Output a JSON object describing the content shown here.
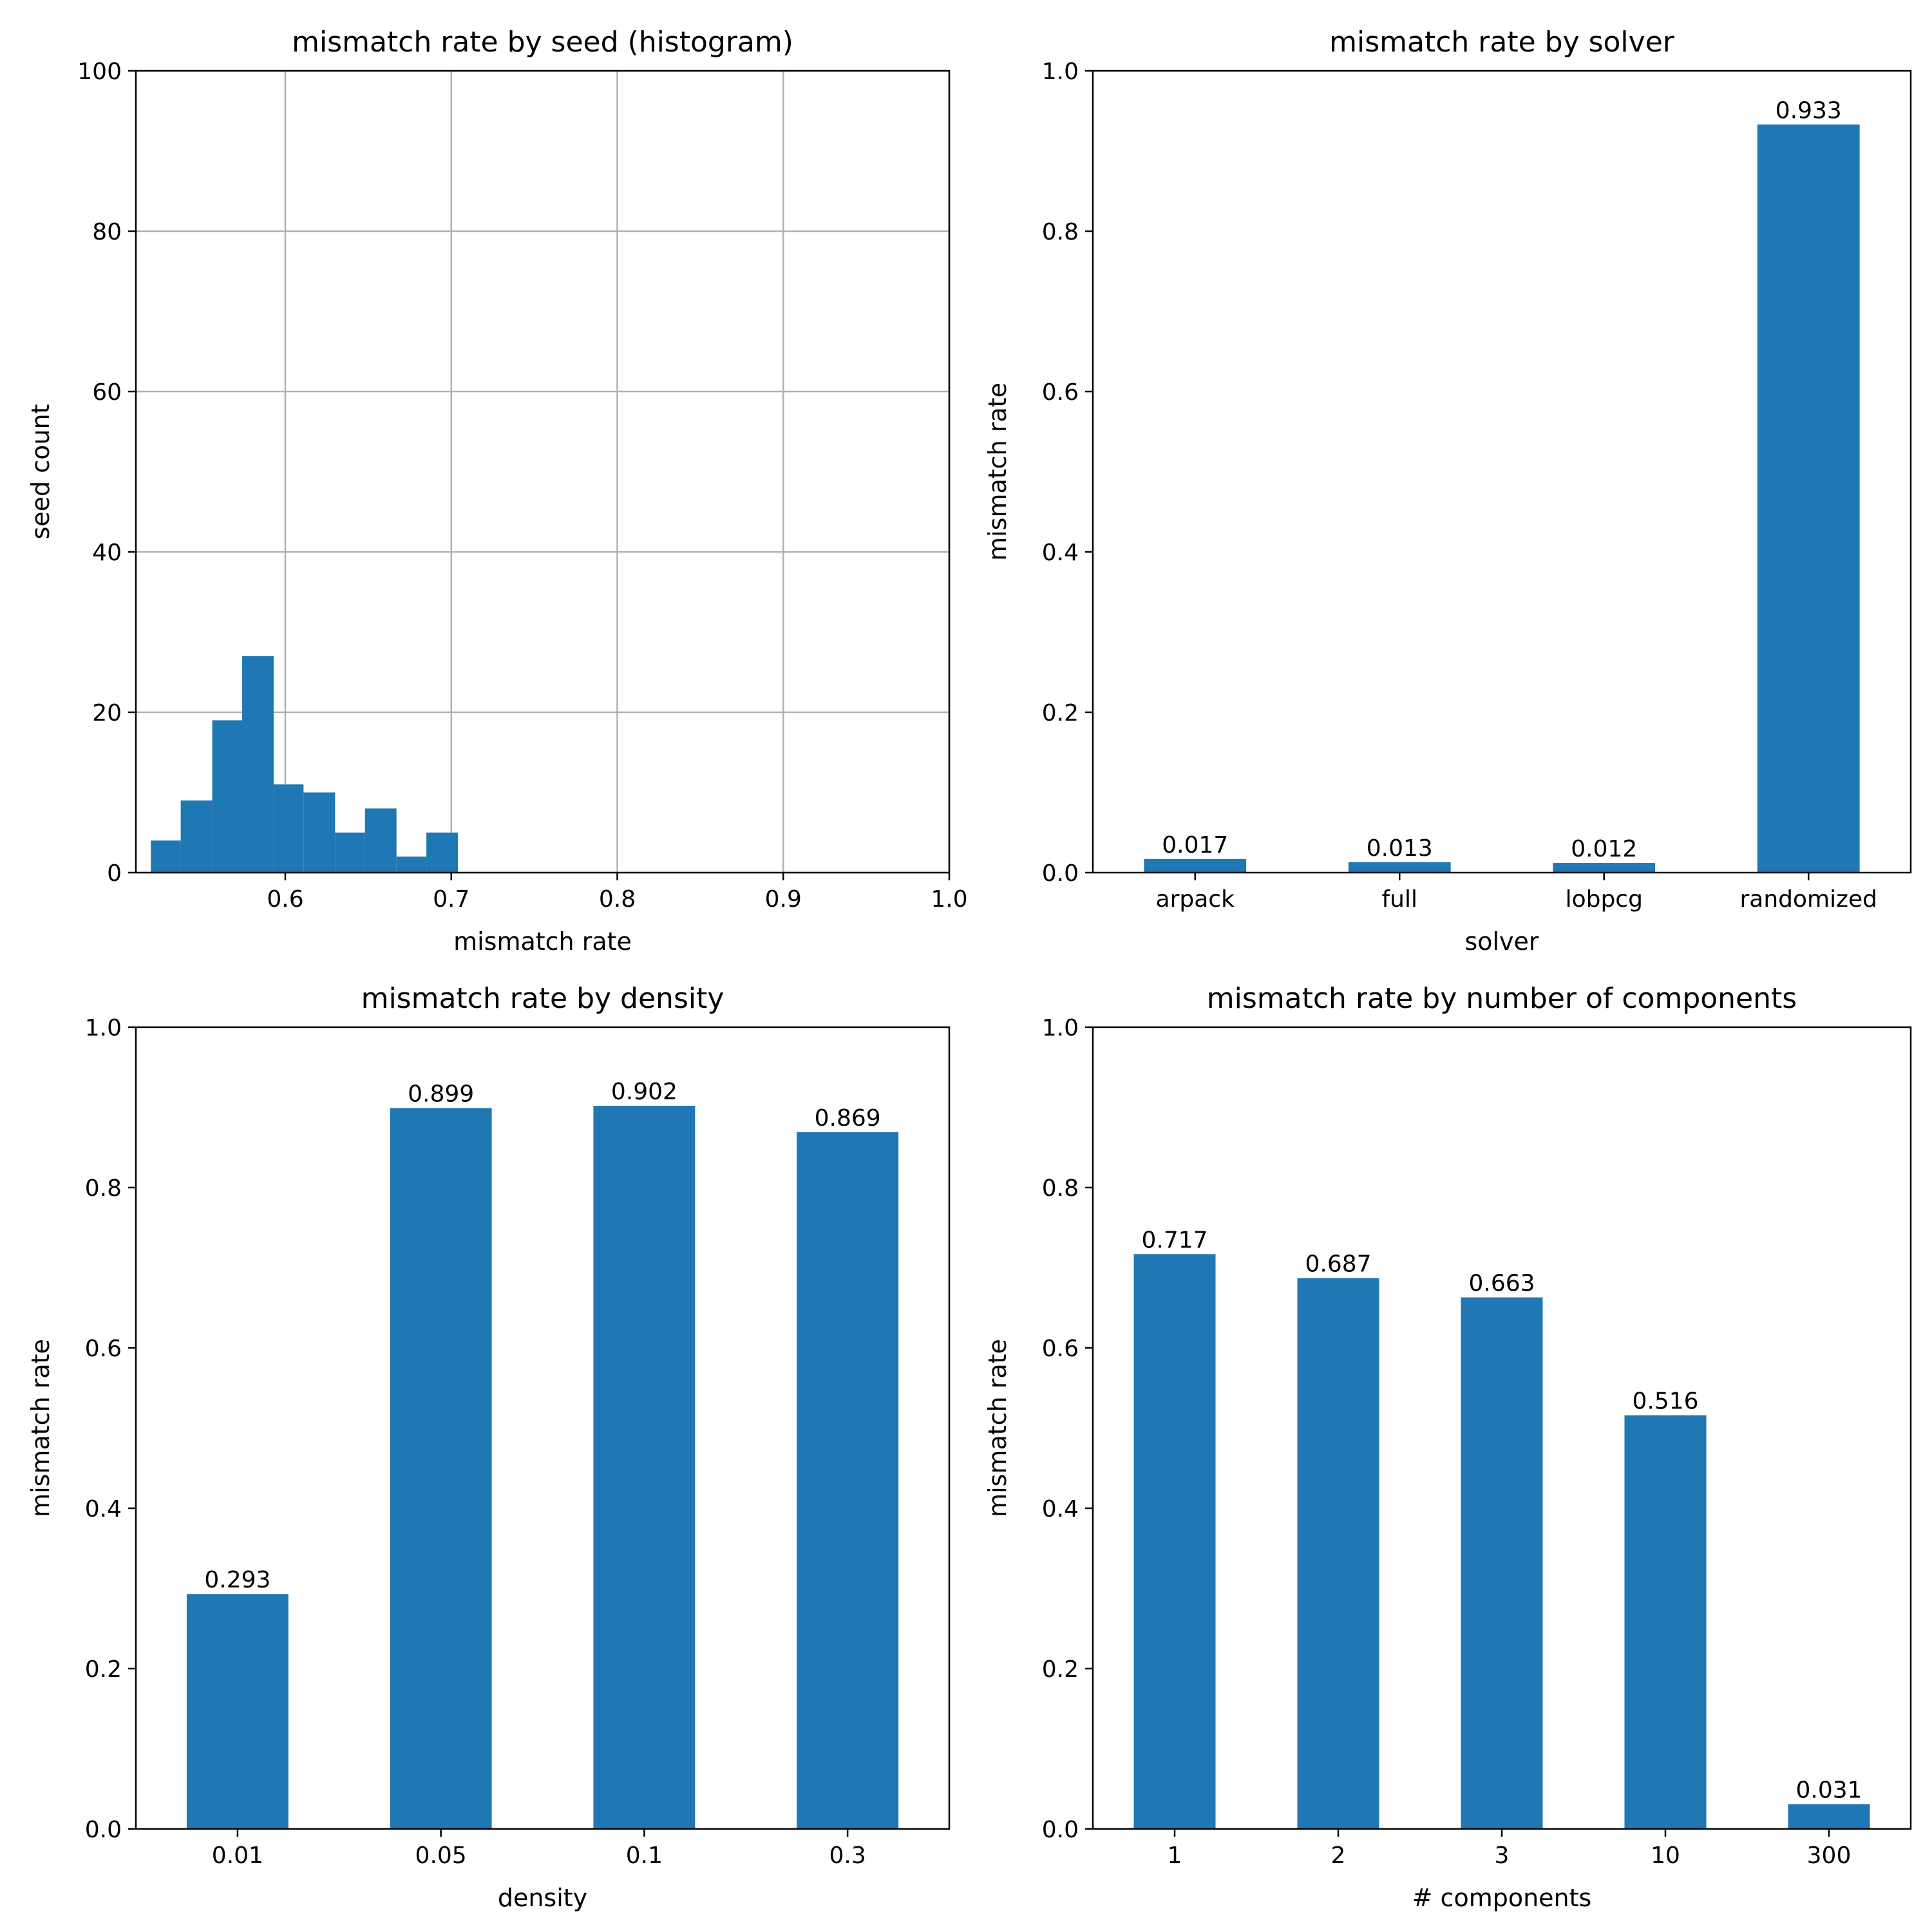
{
  "colors": {
    "bar": "#1f77b4",
    "grid": "#b0b0b0",
    "axis": "#000000",
    "background": "#ffffff"
  },
  "chart_data": [
    {
      "type": "bar",
      "subtype": "histogram",
      "title": "mismatch rate by seed (histogram)",
      "xlabel": "mismatch rate",
      "ylabel": "seed count",
      "xlim": [
        0.51,
        1.0
      ],
      "ylim": [
        0,
        100
      ],
      "grid": true,
      "xticks": [
        0.6,
        0.7,
        0.8,
        0.9,
        1.0
      ],
      "xtick_labels": [
        "0.6",
        "0.7",
        "0.8",
        "0.9",
        "1.0"
      ],
      "yticks": [
        0,
        20,
        40,
        60,
        80,
        100
      ],
      "ytick_labels": [
        "0",
        "20",
        "40",
        "60",
        "80",
        "100"
      ],
      "bins": [
        {
          "x0": 0.519,
          "x1": 0.537,
          "count": 4
        },
        {
          "x0": 0.537,
          "x1": 0.556,
          "count": 9
        },
        {
          "x0": 0.556,
          "x1": 0.574,
          "count": 19
        },
        {
          "x0": 0.574,
          "x1": 0.593,
          "count": 27
        },
        {
          "x0": 0.593,
          "x1": 0.611,
          "count": 11
        },
        {
          "x0": 0.611,
          "x1": 0.63,
          "count": 10
        },
        {
          "x0": 0.63,
          "x1": 0.648,
          "count": 5
        },
        {
          "x0": 0.648,
          "x1": 0.667,
          "count": 8
        },
        {
          "x0": 0.667,
          "x1": 0.685,
          "count": 2
        },
        {
          "x0": 0.685,
          "x1": 0.704,
          "count": 5
        }
      ]
    },
    {
      "type": "bar",
      "title": "mismatch rate by solver",
      "xlabel": "solver",
      "ylabel": "mismatch rate",
      "ylim": [
        0,
        1.0
      ],
      "grid": false,
      "categories": [
        "arpack",
        "full",
        "lobpcg",
        "randomized"
      ],
      "values": [
        0.017,
        0.013,
        0.012,
        0.933
      ],
      "value_labels": [
        "0.017",
        "0.013",
        "0.012",
        "0.933"
      ],
      "yticks": [
        0,
        0.2,
        0.4,
        0.6,
        0.8,
        1.0
      ],
      "ytick_labels": [
        "0.0",
        "0.2",
        "0.4",
        "0.6",
        "0.8",
        "1.0"
      ]
    },
    {
      "type": "bar",
      "title": "mismatch rate by density",
      "xlabel": "density",
      "ylabel": "mismatch rate",
      "ylim": [
        0,
        1.0
      ],
      "grid": false,
      "categories": [
        "0.01",
        "0.05",
        "0.1",
        "0.3"
      ],
      "values": [
        0.293,
        0.899,
        0.902,
        0.869
      ],
      "value_labels": [
        "0.293",
        "0.899",
        "0.902",
        "0.869"
      ],
      "yticks": [
        0,
        0.2,
        0.4,
        0.6,
        0.8,
        1.0
      ],
      "ytick_labels": [
        "0.0",
        "0.2",
        "0.4",
        "0.6",
        "0.8",
        "1.0"
      ]
    },
    {
      "type": "bar",
      "title": "mismatch rate by number of components",
      "xlabel": "# components",
      "ylabel": "mismatch rate",
      "ylim": [
        0,
        1.0
      ],
      "grid": false,
      "categories": [
        "1",
        "2",
        "3",
        "10",
        "300"
      ],
      "values": [
        0.717,
        0.687,
        0.663,
        0.516,
        0.031
      ],
      "value_labels": [
        "0.717",
        "0.687",
        "0.663",
        "0.516",
        "0.031"
      ],
      "yticks": [
        0,
        0.2,
        0.4,
        0.6,
        0.8,
        1.0
      ],
      "ytick_labels": [
        "0.0",
        "0.2",
        "0.4",
        "0.6",
        "0.8",
        "1.0"
      ]
    }
  ]
}
